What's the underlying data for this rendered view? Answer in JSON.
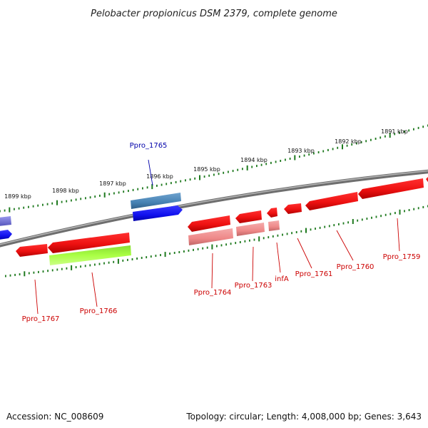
{
  "title": "Pelobacter propionicus DSM 2379, complete genome",
  "footer": {
    "accession": "Accession: NC_008609",
    "summary": "Topology: circular; Length: 4,008,000 bp; Genes: 3,643"
  },
  "colors": {
    "backbone": "#8a8a8a",
    "tick": "#1f7a1f",
    "gene_red": "#ee1111",
    "gene_pink": "#ee8888",
    "gene_blue": "#1111ee",
    "gene_steelblue": "#4682b4",
    "gene_lime": "#aaff44",
    "gene_purple": "#7777dd",
    "label_red": "#cc0000",
    "label_blue": "#0000aa"
  },
  "ticks": [
    {
      "label": "1899 kbp"
    },
    {
      "label": "1898 kbp"
    },
    {
      "label": "1897 kbp"
    },
    {
      "label": "1896 kbp"
    },
    {
      "label": "1895 kbp"
    },
    {
      "label": "1894 kbp"
    },
    {
      "label": "1893 kbp"
    },
    {
      "label": "1892 kbp"
    },
    {
      "label": "1891 kbp"
    }
  ],
  "gene_labels": [
    {
      "label": "Ppro_1767"
    },
    {
      "label": "Ppro_1766"
    },
    {
      "label": "Ppro_1765"
    },
    {
      "label": "Ppro_1764"
    },
    {
      "label": "Ppro_1763"
    },
    {
      "label": "infA"
    },
    {
      "label": "Ppro_1761"
    },
    {
      "label": "Ppro_1760"
    },
    {
      "label": "Ppro_1759"
    }
  ]
}
